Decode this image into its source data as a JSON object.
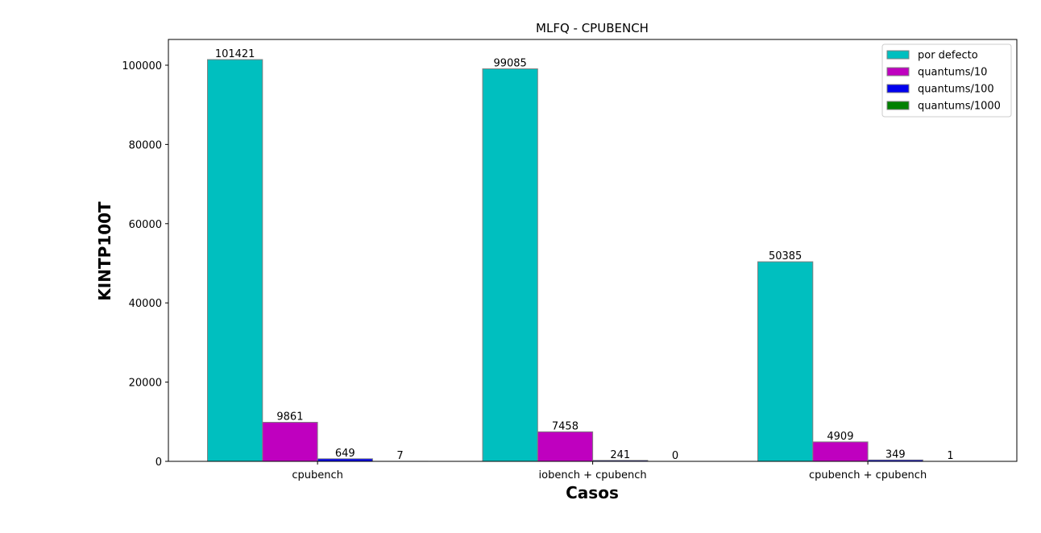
{
  "chart_data": {
    "type": "bar",
    "title": "MLFQ - CPUBENCH",
    "xlabel": "Casos",
    "ylabel": "KINTP100T",
    "categories": [
      "cpubench",
      "iobench + cpubench",
      "cpubench + cpubench"
    ],
    "series": [
      {
        "name": "por defecto",
        "values": [
          101421,
          99085,
          50385
        ],
        "color": "#00bfbf"
      },
      {
        "name": "quantums/10",
        "values": [
          9861,
          7458,
          4909
        ],
        "color": "#bf00bf"
      },
      {
        "name": "quantums/100",
        "values": [
          649,
          241,
          349
        ],
        "color": "#0000ee"
      },
      {
        "name": "quantums/1000",
        "values": [
          7,
          0,
          1
        ],
        "color": "#008000"
      }
    ],
    "ylim": [
      0,
      106500
    ],
    "yticks": [
      0,
      20000,
      40000,
      60000,
      80000,
      100000
    ],
    "legend": "top-right",
    "grid": false,
    "bar_edge_color": "#808080"
  }
}
